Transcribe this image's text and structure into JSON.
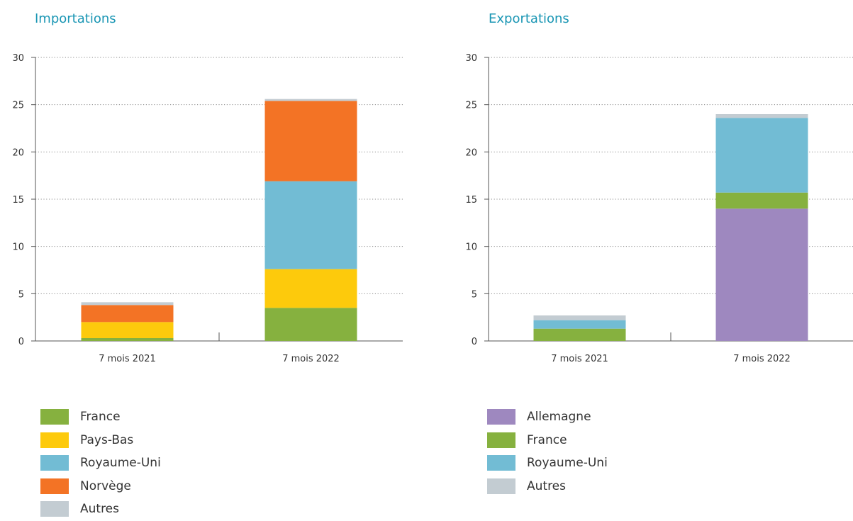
{
  "chart_data": [
    {
      "type": "bar",
      "stacked": true,
      "title": "Importations",
      "categories": [
        "7 mois 2021",
        "7 mois 2022"
      ],
      "ylim": [
        0,
        30
      ],
      "yticks": [
        "0",
        "5",
        "10",
        "15",
        "20",
        "25",
        "30"
      ],
      "grid": "horizontal-dotted",
      "legend_position": "bottom",
      "series": [
        {
          "name": "France",
          "color": "#86b13f",
          "values": [
            0.3,
            3.5
          ]
        },
        {
          "name": "Pays-Bas",
          "color": "#fdca0c",
          "values": [
            1.7,
            4.1
          ]
        },
        {
          "name": "Royaume-Uni",
          "color": "#72bcd4",
          "values": [
            0,
            9.3
          ]
        },
        {
          "name": "Norvège",
          "color": "#f37325",
          "values": [
            1.8,
            8.5
          ]
        },
        {
          "name": "Autres",
          "color": "#c3ccd2",
          "values": [
            0.3,
            0.2
          ]
        }
      ]
    },
    {
      "type": "bar",
      "stacked": true,
      "title": "Exportations",
      "categories": [
        "7 mois 2021",
        "7 mois 2022"
      ],
      "ylim": [
        0,
        30
      ],
      "yticks": [
        "0",
        "5",
        "10",
        "15",
        "20",
        "25",
        "30"
      ],
      "grid": "horizontal-dotted",
      "legend_position": "bottom",
      "series": [
        {
          "name": "Allemagne",
          "color": "#9e88bf",
          "values": [
            0,
            14.0
          ]
        },
        {
          "name": "France",
          "color": "#86b13f",
          "values": [
            1.3,
            1.7
          ]
        },
        {
          "name": "Royaume-Uni",
          "color": "#72bcd4",
          "values": [
            0.9,
            7.9
          ]
        },
        {
          "name": "Autres",
          "color": "#c3ccd2",
          "values": [
            0.5,
            0.4
          ]
        }
      ]
    }
  ]
}
